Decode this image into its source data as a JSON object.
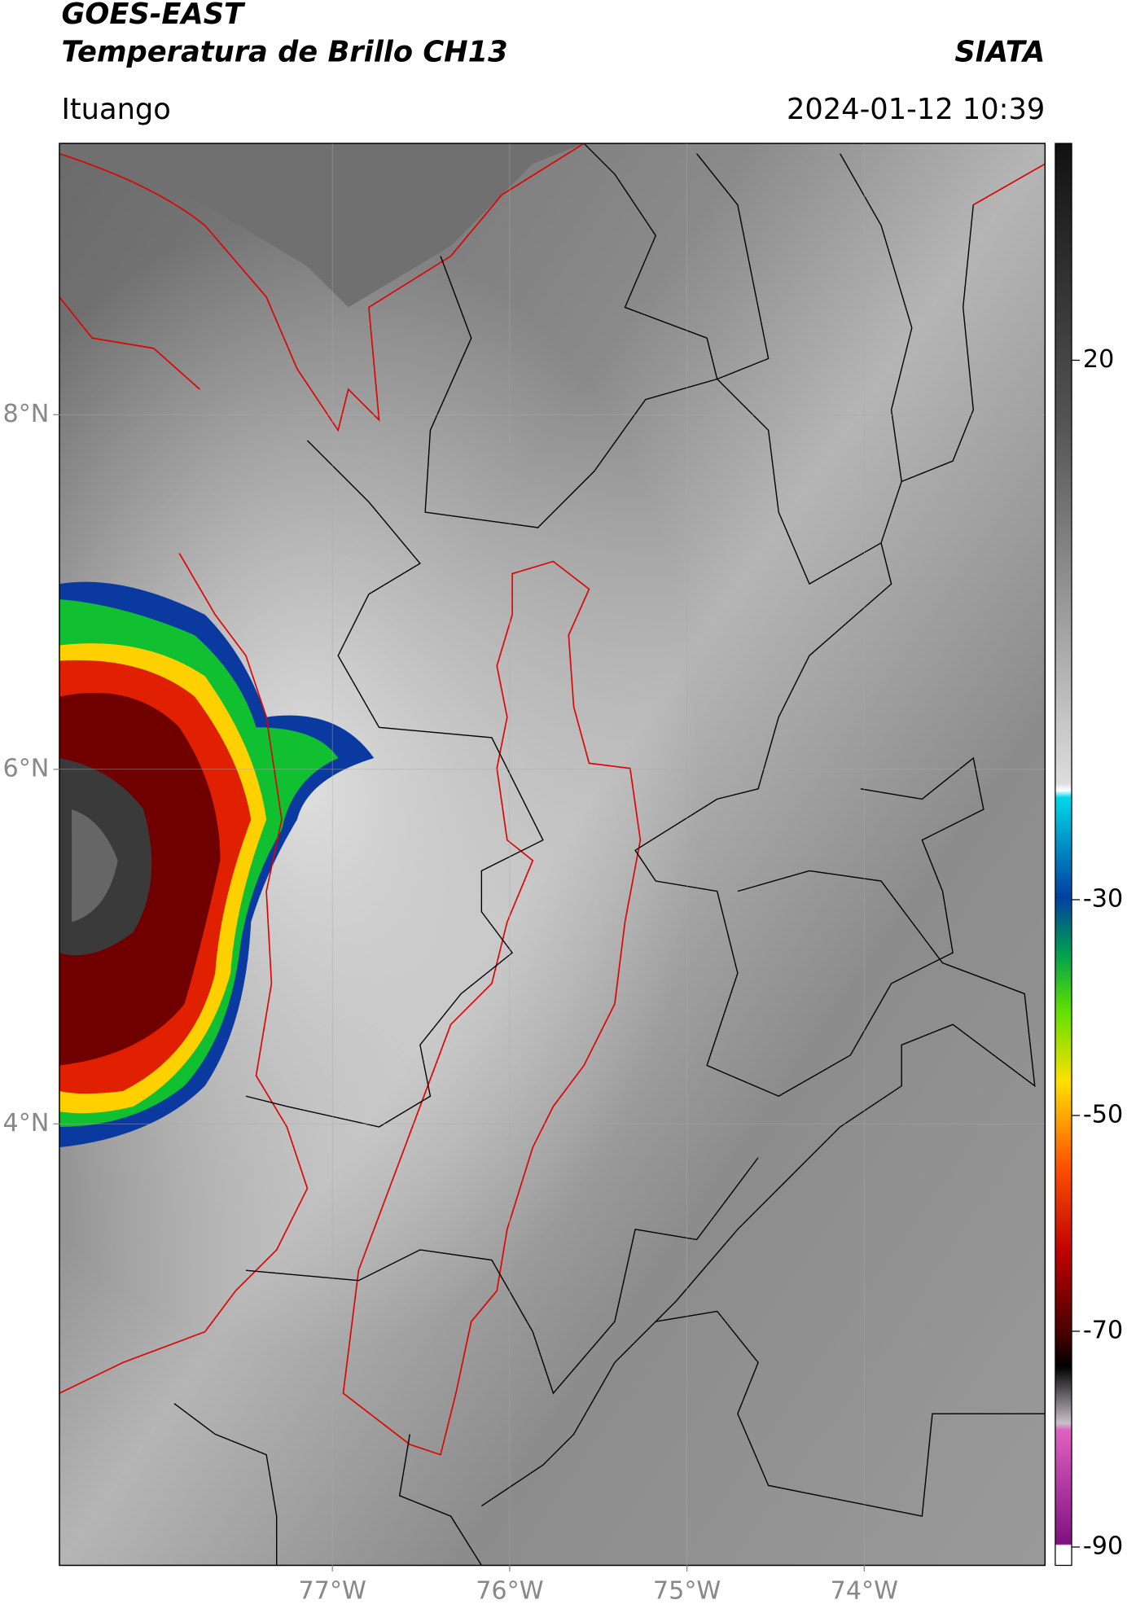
{
  "header": {
    "title": "GOES-EAST",
    "subtitle": "Temperatura de Brillo CH13",
    "brand": "SIATA",
    "location": "Ituango",
    "datetime": "2024-01-12 10:39"
  },
  "map": {
    "latlim": [
      1.51,
      9.53
    ],
    "lonlim": [
      -78.54,
      -72.98
    ],
    "lat_ticks": [
      {
        "value": 8,
        "label": "8°N"
      },
      {
        "value": 6,
        "label": "6°N"
      },
      {
        "value": 4,
        "label": "4°N"
      }
    ],
    "lon_ticks": [
      {
        "value": -77,
        "label": "77°W"
      },
      {
        "value": -76,
        "label": "76°W"
      },
      {
        "value": -75,
        "label": "75°W"
      },
      {
        "value": -74,
        "label": "74°W"
      }
    ],
    "grid": true
  },
  "colorbar": {
    "lim": [
      -91.7,
      40.1
    ],
    "ticks": [
      20,
      -30,
      -50,
      -70,
      -90
    ]
  }
}
